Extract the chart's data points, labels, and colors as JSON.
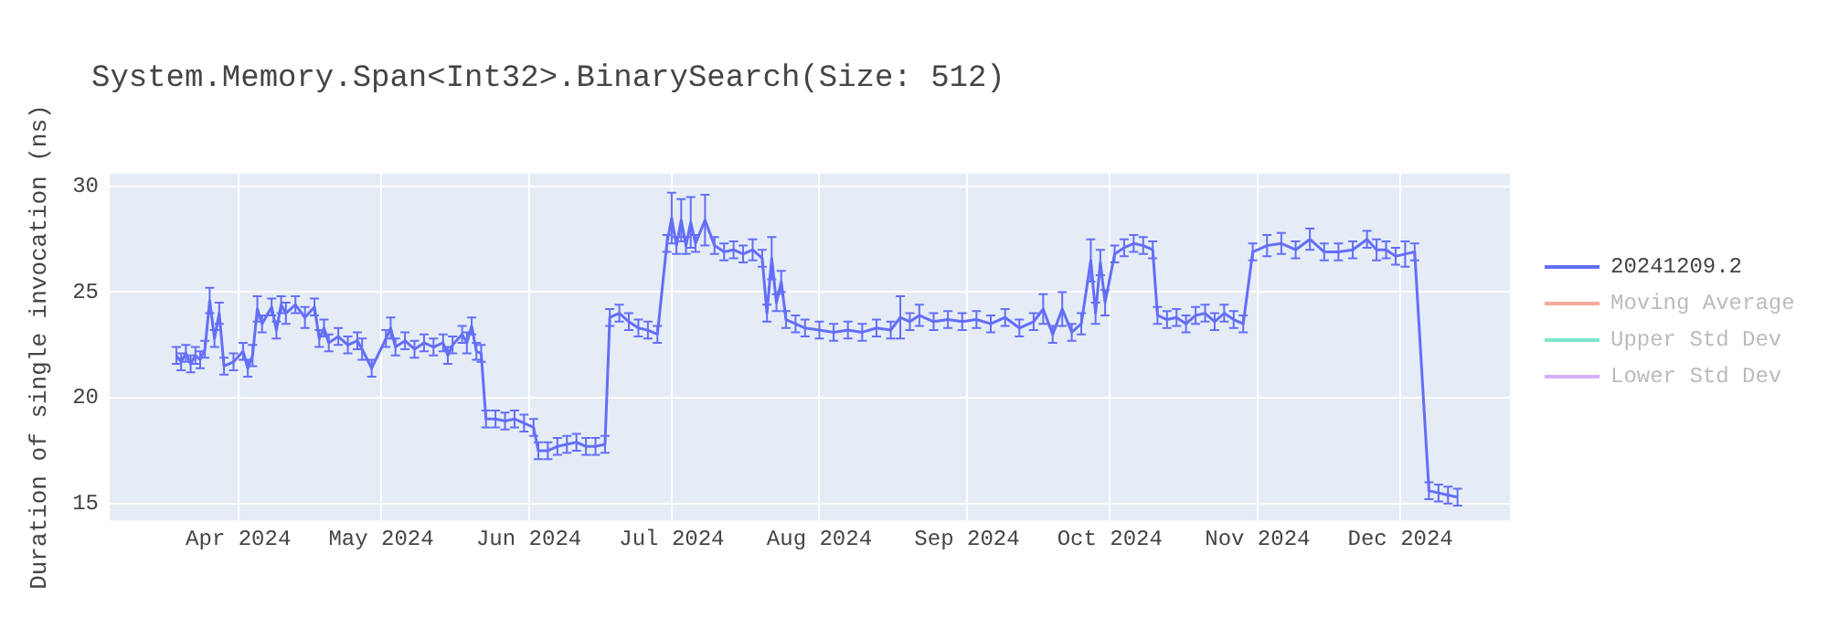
{
  "chart_data": {
    "type": "line",
    "title": "System.Memory.Span<Int32>.BinarySearch(Size: 512)",
    "ylabel": "Duration of single invocation (ns)",
    "xlim": [
      "2024-03-05",
      "2024-12-24"
    ],
    "xticks": [
      {
        "value": "2024-04-01",
        "label": "Apr 2024"
      },
      {
        "value": "2024-05-01",
        "label": "May 2024"
      },
      {
        "value": "2024-06-01",
        "label": "Jun 2024"
      },
      {
        "value": "2024-07-01",
        "label": "Jul 2024"
      },
      {
        "value": "2024-08-01",
        "label": "Aug 2024"
      },
      {
        "value": "2024-09-01",
        "label": "Sep 2024"
      },
      {
        "value": "2024-10-01",
        "label": "Oct 2024"
      },
      {
        "value": "2024-11-01",
        "label": "Nov 2024"
      },
      {
        "value": "2024-12-01",
        "label": "Dec 2024"
      }
    ],
    "ylim": [
      14.2,
      30.6
    ],
    "yticks": [
      15,
      20,
      25,
      30
    ],
    "grid": true,
    "legend": "right",
    "line_style": "solid",
    "series": [
      {
        "name": "20241209.2",
        "color": "#636efa",
        "x": [
          "2024-03-19",
          "2024-03-20",
          "2024-03-21",
          "2024-03-22",
          "2024-03-23",
          "2024-03-24",
          "2024-03-25",
          "2024-03-26",
          "2024-03-27",
          "2024-03-28",
          "2024-03-29",
          "2024-03-31",
          "2024-04-02",
          "2024-04-03",
          "2024-04-04",
          "2024-04-05",
          "2024-04-06",
          "2024-04-08",
          "2024-04-09",
          "2024-04-10",
          "2024-04-11",
          "2024-04-13",
          "2024-04-15",
          "2024-04-17",
          "2024-04-18",
          "2024-04-19",
          "2024-04-20",
          "2024-04-22",
          "2024-04-24",
          "2024-04-26",
          "2024-04-27",
          "2024-04-29",
          "2024-05-02",
          "2024-05-03",
          "2024-05-04",
          "2024-05-06",
          "2024-05-08",
          "2024-05-10",
          "2024-05-12",
          "2024-05-14",
          "2024-05-15",
          "2024-05-16",
          "2024-05-18",
          "2024-05-19",
          "2024-05-20",
          "2024-05-21",
          "2024-05-22",
          "2024-05-23",
          "2024-05-25",
          "2024-05-27",
          "2024-05-29",
          "2024-05-31",
          "2024-06-02",
          "2024-06-03",
          "2024-06-05",
          "2024-06-07",
          "2024-06-09",
          "2024-06-11",
          "2024-06-13",
          "2024-06-15",
          "2024-06-17",
          "2024-06-18",
          "2024-06-20",
          "2024-06-22",
          "2024-06-24",
          "2024-06-26",
          "2024-06-28",
          "2024-06-30",
          "2024-07-01",
          "2024-07-02",
          "2024-07-03",
          "2024-07-04",
          "2024-07-05",
          "2024-07-06",
          "2024-07-08",
          "2024-07-10",
          "2024-07-12",
          "2024-07-14",
          "2024-07-16",
          "2024-07-18",
          "2024-07-20",
          "2024-07-21",
          "2024-07-22",
          "2024-07-23",
          "2024-07-24",
          "2024-07-25",
          "2024-07-27",
          "2024-07-29",
          "2024-08-01",
          "2024-08-04",
          "2024-08-07",
          "2024-08-10",
          "2024-08-13",
          "2024-08-16",
          "2024-08-18",
          "2024-08-20",
          "2024-08-22",
          "2024-08-25",
          "2024-08-28",
          "2024-08-31",
          "2024-09-03",
          "2024-09-06",
          "2024-09-09",
          "2024-09-12",
          "2024-09-15",
          "2024-09-17",
          "2024-09-19",
          "2024-09-21",
          "2024-09-23",
          "2024-09-25",
          "2024-09-27",
          "2024-09-28",
          "2024-09-29",
          "2024-09-30",
          "2024-10-02",
          "2024-10-04",
          "2024-10-06",
          "2024-10-08",
          "2024-10-10",
          "2024-10-11",
          "2024-10-13",
          "2024-10-15",
          "2024-10-17",
          "2024-10-19",
          "2024-10-21",
          "2024-10-23",
          "2024-10-25",
          "2024-10-27",
          "2024-10-29",
          "2024-10-31",
          "2024-11-03",
          "2024-11-06",
          "2024-11-09",
          "2024-11-12",
          "2024-11-15",
          "2024-11-18",
          "2024-11-21",
          "2024-11-24",
          "2024-11-26",
          "2024-11-28",
          "2024-11-30",
          "2024-12-02",
          "2024-12-04",
          "2024-12-07",
          "2024-12-09",
          "2024-12-11",
          "2024-12-13"
        ],
        "values": [
          22.0,
          21.7,
          22.1,
          21.6,
          22.0,
          21.8,
          22.3,
          24.6,
          22.8,
          24.0,
          21.5,
          21.7,
          22.2,
          21.4,
          22.0,
          24.2,
          23.5,
          24.3,
          23.2,
          24.4,
          24.0,
          24.4,
          23.8,
          24.3,
          22.8,
          23.3,
          22.6,
          22.9,
          22.5,
          22.7,
          22.3,
          21.4,
          22.8,
          23.3,
          22.4,
          22.7,
          22.3,
          22.6,
          22.4,
          22.6,
          22.0,
          22.5,
          23.0,
          22.6,
          23.4,
          22.2,
          22.1,
          19.0,
          19.0,
          18.9,
          19.0,
          18.8,
          18.6,
          17.5,
          17.5,
          17.7,
          17.8,
          17.9,
          17.7,
          17.7,
          17.8,
          23.8,
          24.0,
          23.6,
          23.3,
          23.2,
          23.0,
          27.3,
          28.5,
          27.2,
          28.4,
          27.2,
          28.3,
          27.3,
          28.4,
          27.2,
          26.9,
          27.0,
          26.8,
          27.0,
          26.6,
          24.0,
          26.6,
          24.5,
          25.5,
          23.7,
          23.5,
          23.3,
          23.2,
          23.1,
          23.2,
          23.1,
          23.3,
          23.2,
          23.8,
          23.6,
          23.9,
          23.6,
          23.7,
          23.6,
          23.7,
          23.5,
          23.8,
          23.3,
          23.6,
          24.2,
          23.0,
          24.2,
          23.1,
          23.5,
          26.5,
          24.0,
          26.4,
          24.5,
          26.8,
          27.1,
          27.3,
          27.2,
          27.0,
          23.9,
          23.7,
          23.8,
          23.5,
          23.9,
          24.0,
          23.6,
          24.0,
          23.7,
          23.5,
          26.9,
          27.2,
          27.3,
          27.0,
          27.5,
          26.9,
          26.9,
          27.0,
          27.5,
          27.0,
          27.0,
          26.7,
          26.8,
          26.9,
          15.6,
          15.5,
          15.4,
          15.3
        ],
        "errors": [
          0.4,
          0.4,
          0.4,
          0.4,
          0.4,
          0.4,
          0.4,
          0.6,
          0.4,
          0.5,
          0.4,
          0.4,
          0.4,
          0.4,
          0.5,
          0.6,
          0.4,
          0.4,
          0.4,
          0.4,
          0.5,
          0.4,
          0.5,
          0.4,
          0.4,
          0.4,
          0.4,
          0.4,
          0.4,
          0.4,
          0.5,
          0.4,
          0.4,
          0.5,
          0.4,
          0.4,
          0.4,
          0.4,
          0.4,
          0.4,
          0.4,
          0.4,
          0.4,
          0.5,
          0.4,
          0.4,
          0.4,
          0.4,
          0.4,
          0.4,
          0.4,
          0.4,
          0.4,
          0.4,
          0.4,
          0.4,
          0.4,
          0.4,
          0.4,
          0.4,
          0.4,
          0.4,
          0.4,
          0.4,
          0.4,
          0.4,
          0.4,
          0.4,
          1.2,
          0.4,
          1.0,
          0.4,
          1.2,
          0.4,
          1.2,
          0.4,
          0.4,
          0.4,
          0.4,
          0.5,
          0.4,
          0.4,
          1.0,
          0.4,
          0.5,
          0.4,
          0.4,
          0.4,
          0.4,
          0.4,
          0.4,
          0.4,
          0.4,
          0.4,
          1.0,
          0.4,
          0.5,
          0.4,
          0.4,
          0.4,
          0.4,
          0.4,
          0.4,
          0.4,
          0.4,
          0.7,
          0.4,
          0.8,
          0.4,
          0.5,
          1.0,
          0.5,
          0.6,
          0.6,
          0.4,
          0.4,
          0.4,
          0.4,
          0.4,
          0.4,
          0.4,
          0.4,
          0.4,
          0.4,
          0.4,
          0.4,
          0.4,
          0.4,
          0.4,
          0.4,
          0.5,
          0.5,
          0.4,
          0.5,
          0.4,
          0.4,
          0.4,
          0.4,
          0.5,
          0.4,
          0.4,
          0.6,
          0.4,
          0.4,
          0.4,
          0.4,
          0.4
        ]
      },
      {
        "name": "Moving Average",
        "color": "#ef553b"
      },
      {
        "name": "Upper Std Dev",
        "color": "#00cc96"
      },
      {
        "name": "Lower Std Dev",
        "color": "#ab63fa"
      }
    ]
  }
}
